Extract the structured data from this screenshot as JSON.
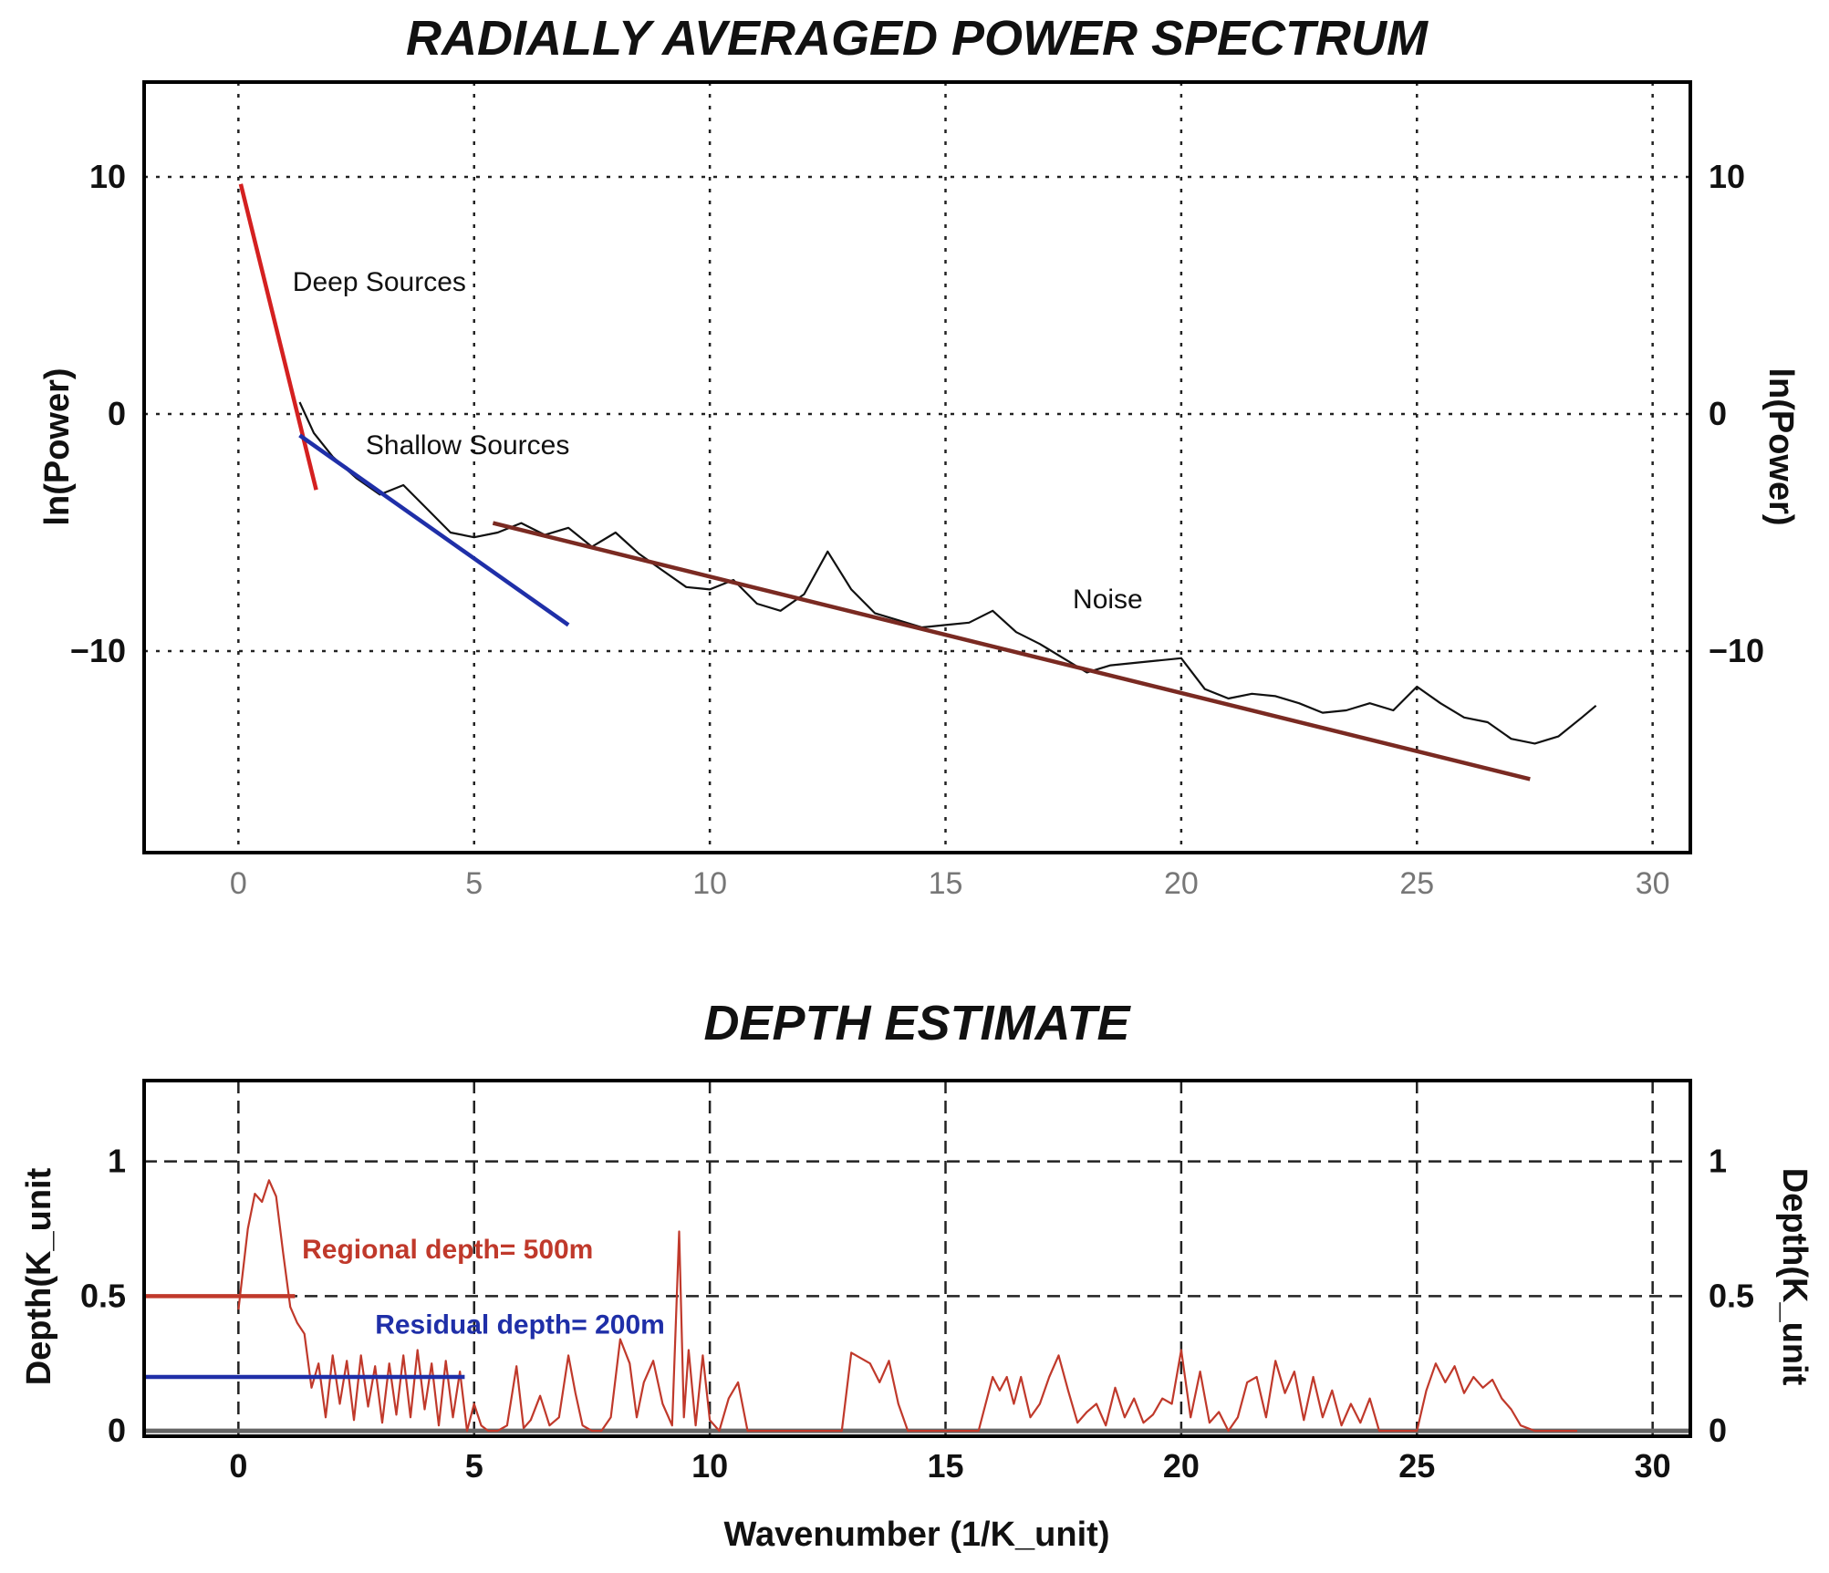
{
  "chart_data": [
    {
      "type": "line",
      "title": "RADIALLY AVERAGED POWER SPECTRUM",
      "ylabel": "ln(Power)",
      "ylabel_right": "ln(Power)",
      "xlim": [
        -2,
        30.8
      ],
      "ylim": [
        -18.5,
        14
      ],
      "grid": true,
      "xticks": [
        0,
        5,
        10,
        15,
        20,
        25,
        30
      ],
      "yticks": [
        10,
        0,
        -10
      ],
      "ytick_labels": [
        "10",
        "0",
        "−10"
      ],
      "series": [
        {
          "name": "spectrum",
          "color": "#111111",
          "x": [
            1.3,
            1.6,
            2.0,
            2.5,
            3.0,
            3.5,
            4.0,
            4.5,
            5.0,
            5.5,
            6.0,
            6.5,
            7.0,
            7.5,
            8.0,
            8.5,
            9.0,
            9.5,
            10.0,
            10.5,
            11.0,
            11.5,
            12.0,
            12.5,
            13.0,
            13.5,
            14.0,
            14.5,
            15.0,
            15.5,
            16.0,
            16.5,
            17.0,
            17.5,
            18.0,
            18.5,
            19.0,
            19.5,
            20.0,
            20.5,
            21.0,
            21.5,
            22.0,
            22.5,
            23.0,
            23.5,
            24.0,
            24.5,
            25.0,
            25.5,
            26.0,
            26.5,
            27.0,
            27.5,
            28.0,
            28.5,
            28.8
          ],
          "y": [
            0.5,
            -0.8,
            -1.8,
            -2.7,
            -3.4,
            -3.0,
            -4.0,
            -5.0,
            -5.2,
            -5.0,
            -4.6,
            -5.1,
            -4.8,
            -5.6,
            -5.0,
            -5.9,
            -6.6,
            -7.3,
            -7.4,
            -7.0,
            -8.0,
            -8.3,
            -7.6,
            -5.8,
            -7.4,
            -8.4,
            -8.7,
            -9.0,
            -8.9,
            -8.8,
            -8.3,
            -9.2,
            -9.7,
            -10.3,
            -10.9,
            -10.6,
            -10.5,
            -10.4,
            -10.3,
            -11.6,
            -12.0,
            -11.8,
            -11.9,
            -12.2,
            -12.6,
            -12.5,
            -12.2,
            -12.5,
            -11.5,
            -12.2,
            -12.8,
            -13.0,
            -13.7,
            -13.9,
            -13.6,
            -12.8,
            -12.3
          ]
        },
        {
          "name": "deep-fit",
          "color": "#d42020",
          "x": [
            0.05,
            1.65
          ],
          "y": [
            9.7,
            -3.2
          ]
        },
        {
          "name": "shallow-fit",
          "color": "#1f2fa8",
          "x": [
            1.3,
            7.0
          ],
          "y": [
            -0.9,
            -8.9
          ]
        },
        {
          "name": "noise-fit",
          "color": "#7a2a22",
          "x": [
            5.4,
            27.4
          ],
          "y": [
            -4.6,
            -15.4
          ]
        }
      ],
      "annotations": [
        {
          "text": "Deep Sources",
          "x": 1.15,
          "y": 5.2
        },
        {
          "text": "Shallow Sources",
          "x": 2.7,
          "y": -1.7
        },
        {
          "text": "Noise",
          "x": 17.7,
          "y": -8.2
        }
      ]
    },
    {
      "type": "line",
      "title": "DEPTH ESTIMATE",
      "xlabel": "Wavenumber (1/K_unit)",
      "ylabel": "Depth(K_unit",
      "ylabel_right": "Depth(K_unit",
      "xlim": [
        -2,
        30.8
      ],
      "ylim": [
        -0.02,
        1.3
      ],
      "grid": true,
      "xticks": [
        0,
        5,
        10,
        15,
        20,
        25,
        30
      ],
      "yticks": [
        1,
        0.5,
        0
      ],
      "ytick_labels": [
        "1",
        "0.5",
        "0"
      ],
      "series": [
        {
          "name": "depth",
          "color": "#c0392b",
          "x": [
            0.0,
            0.2,
            0.35,
            0.5,
            0.65,
            0.8,
            0.95,
            1.1,
            1.25,
            1.4,
            1.55,
            1.7,
            1.85,
            2.0,
            2.15,
            2.3,
            2.45,
            2.6,
            2.75,
            2.9,
            3.05,
            3.2,
            3.35,
            3.5,
            3.65,
            3.8,
            3.95,
            4.1,
            4.25,
            4.4,
            4.55,
            4.7,
            4.85,
            5.0,
            5.15,
            5.3,
            5.5,
            5.7,
            5.9,
            6.05,
            6.2,
            6.4,
            6.6,
            6.8,
            7.0,
            7.15,
            7.3,
            7.5,
            7.7,
            7.9,
            8.1,
            8.3,
            8.45,
            8.6,
            8.8,
            9.0,
            9.2,
            9.35,
            9.45,
            9.55,
            9.7,
            9.85,
            10.0,
            10.2,
            10.4,
            10.6,
            10.8,
            11.0,
            11.3,
            11.6,
            12.0,
            12.4,
            12.8,
            13.0,
            13.2,
            13.4,
            13.6,
            13.8,
            14.0,
            14.2,
            14.5,
            14.8,
            15.1,
            15.4,
            15.7,
            16.0,
            16.15,
            16.3,
            16.45,
            16.6,
            16.8,
            17.0,
            17.2,
            17.4,
            17.6,
            17.8,
            18.0,
            18.2,
            18.4,
            18.6,
            18.8,
            19.0,
            19.2,
            19.4,
            19.6,
            19.8,
            20.0,
            20.2,
            20.4,
            20.6,
            20.8,
            21.0,
            21.2,
            21.4,
            21.6,
            21.8,
            22.0,
            22.2,
            22.4,
            22.6,
            22.8,
            23.0,
            23.2,
            23.4,
            23.6,
            23.8,
            24.0,
            24.2,
            24.4,
            24.6,
            24.8,
            25.0,
            25.2,
            25.4,
            25.6,
            25.8,
            26.0,
            26.2,
            26.4,
            26.6,
            26.8,
            27.0,
            27.2,
            27.5,
            27.8,
            28.1,
            28.4
          ],
          "y": [
            0.45,
            0.75,
            0.88,
            0.85,
            0.93,
            0.87,
            0.66,
            0.46,
            0.4,
            0.36,
            0.16,
            0.25,
            0.05,
            0.28,
            0.1,
            0.26,
            0.04,
            0.28,
            0.09,
            0.24,
            0.03,
            0.25,
            0.06,
            0.28,
            0.05,
            0.3,
            0.08,
            0.25,
            0.02,
            0.26,
            0.05,
            0.22,
            0.0,
            0.1,
            0.02,
            0.0,
            0.0,
            0.02,
            0.24,
            0.01,
            0.04,
            0.13,
            0.02,
            0.05,
            0.28,
            0.14,
            0.02,
            0.0,
            0.0,
            0.05,
            0.34,
            0.25,
            0.05,
            0.18,
            0.26,
            0.1,
            0.02,
            0.74,
            0.05,
            0.3,
            0.02,
            0.28,
            0.04,
            0.0,
            0.12,
            0.18,
            0.0,
            0.0,
            0.0,
            0.0,
            0.0,
            0.0,
            0.0,
            0.29,
            0.27,
            0.25,
            0.18,
            0.26,
            0.1,
            0.0,
            0.0,
            0.0,
            0.0,
            0.0,
            0.0,
            0.2,
            0.15,
            0.2,
            0.1,
            0.2,
            0.05,
            0.1,
            0.2,
            0.28,
            0.15,
            0.03,
            0.07,
            0.1,
            0.02,
            0.16,
            0.05,
            0.12,
            0.03,
            0.06,
            0.12,
            0.1,
            0.3,
            0.05,
            0.22,
            0.03,
            0.07,
            0.0,
            0.05,
            0.18,
            0.2,
            0.05,
            0.26,
            0.14,
            0.22,
            0.04,
            0.2,
            0.05,
            0.15,
            0.02,
            0.1,
            0.03,
            0.12,
            0.0,
            0.0,
            0.0,
            0.0,
            0.0,
            0.15,
            0.25,
            0.18,
            0.24,
            0.14,
            0.2,
            0.16,
            0.19,
            0.12,
            0.08,
            0.02,
            0.0,
            0.0,
            0.0,
            0.0
          ]
        },
        {
          "name": "regional-depth-line",
          "color": "#c0392b",
          "x": [
            -2,
            1.2
          ],
          "y": [
            0.5,
            0.5
          ]
        },
        {
          "name": "residual-depth-line",
          "color": "#1f2fa8",
          "x": [
            -2,
            4.8
          ],
          "y": [
            0.2,
            0.2
          ]
        }
      ],
      "annotations": [
        {
          "text": "Regional depth= 500m",
          "x": 1.35,
          "y": 0.64,
          "color": "#c0392b"
        },
        {
          "text": "Residual depth= 200m",
          "x": 2.9,
          "y": 0.36,
          "color": "#1f2fa8"
        }
      ]
    }
  ]
}
